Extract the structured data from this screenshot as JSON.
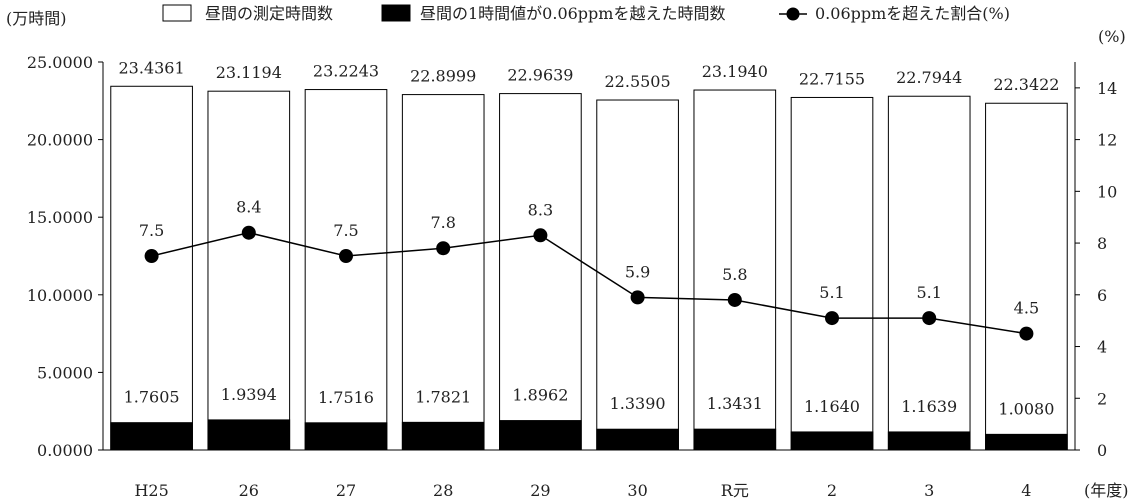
{
  "chart_data": {
    "type": "bar",
    "categories": [
      "H25",
      "26",
      "27",
      "28",
      "29",
      "30",
      "R元",
      "2",
      "3",
      "4"
    ],
    "series": [
      {
        "name": "昼間の測定時間数",
        "kind": "bar",
        "axis": "left",
        "color": "#ffffff",
        "values": [
          23.4361,
          23.1194,
          23.2243,
          22.8999,
          22.9639,
          22.5505,
          23.194,
          22.7155,
          22.7944,
          22.3422
        ],
        "labels": [
          "23.4361",
          "23.1194",
          "23.2243",
          "22.8999",
          "22.9639",
          "22.5505",
          "23.1940",
          "22.7155",
          "22.7944",
          "22.3422"
        ]
      },
      {
        "name": "昼間の1時間値が0.06ppmを越えた時間数",
        "kind": "bar",
        "axis": "left",
        "color": "#000000",
        "values": [
          1.7605,
          1.9394,
          1.7516,
          1.7821,
          1.8962,
          1.339,
          1.3431,
          1.164,
          1.1639,
          1.008
        ],
        "labels": [
          "1.7605",
          "1.9394",
          "1.7516",
          "1.7821",
          "1.8962",
          "1.3390",
          "1.3431",
          "1.1640",
          "1.1639",
          "1.0080"
        ]
      },
      {
        "name": "0.06ppmを超えた割合(%)",
        "kind": "line",
        "axis": "right",
        "color": "#000000",
        "values": [
          7.5,
          8.4,
          7.5,
          7.8,
          8.3,
          5.9,
          5.8,
          5.1,
          5.1,
          4.5
        ],
        "labels": [
          "7.5",
          "8.4",
          "7.5",
          "7.8",
          "8.3",
          "5.9",
          "5.8",
          "5.1",
          "5.1",
          "4.5"
        ]
      }
    ],
    "ylabel": "(万時間)",
    "y2label": "(%)",
    "xlabel": "(年度)",
    "ylim": [
      0,
      25
    ],
    "y2lim": [
      0,
      15
    ],
    "yticks": [
      "0.0000",
      "5.0000",
      "10.0000",
      "15.0000",
      "20.0000",
      "25.0000"
    ],
    "y2ticks": [
      "0",
      "2",
      "4",
      "6",
      "8",
      "10",
      "12",
      "14"
    ],
    "grid": false,
    "legend_position": "top"
  }
}
